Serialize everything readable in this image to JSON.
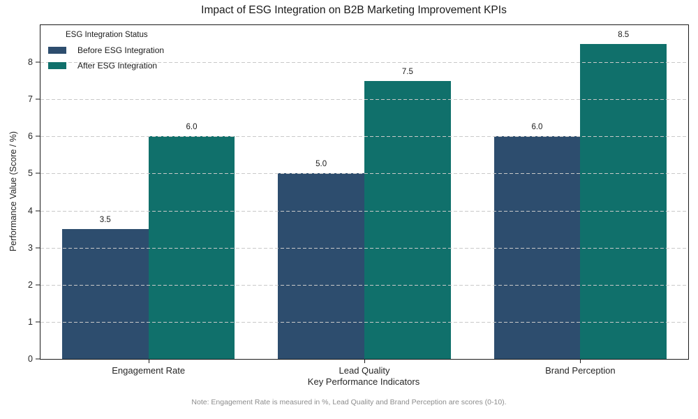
{
  "chart_data": {
    "type": "bar",
    "title": "Impact of ESG Integration on B2B Marketing Improvement KPIs",
    "xlabel": "Key Performance Indicators",
    "ylabel": "Performance Value (Score / %)",
    "categories": [
      "Engagement Rate",
      "Lead Quality",
      "Brand Perception"
    ],
    "series": [
      {
        "name": "Before ESG Integration",
        "color": "#2d4d6e",
        "values": [
          3.5,
          5.0,
          6.0
        ],
        "value_labels": [
          "3.5",
          "5.0",
          "6.0"
        ]
      },
      {
        "name": "After ESG Integration",
        "color": "#10706b",
        "values": [
          6.0,
          7.5,
          8.5
        ],
        "value_labels": [
          "6.0",
          "7.5",
          "8.5"
        ]
      }
    ],
    "ylim": [
      0,
      9
    ],
    "yticks": [
      0,
      1,
      2,
      3,
      4,
      5,
      6,
      7,
      8
    ],
    "grid": "horizontal-dashed-over-bars",
    "legend": {
      "title": "ESG Integration Status",
      "position": "upper-left"
    },
    "note": "Note: Engagement Rate is measured in %, Lead Quality and Brand Perception are scores (0-10).",
    "colors": {
      "grid": "#c9c9c9",
      "spine": "#1a1a1a",
      "note_text": "#8c8c8c"
    }
  }
}
